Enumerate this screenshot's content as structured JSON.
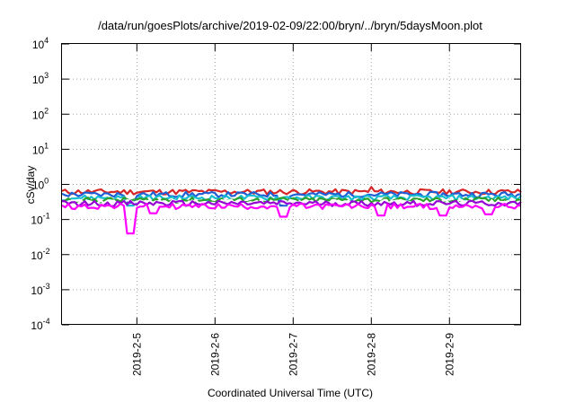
{
  "chart_data": {
    "type": "line",
    "title": "/data/run/goesPlots/archive/2019-02-09/22:00/bryn/../bryn/5daysMoon.plot",
    "xlabel": "Coordinated Universal Time (UTC)",
    "ylabel": "cSv/day",
    "yscale": "log",
    "ylim": [
      0.0001,
      10000
    ],
    "xlim": [
      "2019-02-04 01:00",
      "2019-02-09 22:00"
    ],
    "grid": true,
    "y_ticks": [
      {
        "base": "10",
        "exp": "-4"
      },
      {
        "base": "10",
        "exp": "-3"
      },
      {
        "base": "10",
        "exp": "-2"
      },
      {
        "base": "10",
        "exp": "-1"
      },
      {
        "base": "10",
        "exp": "0"
      },
      {
        "base": "10",
        "exp": "1"
      },
      {
        "base": "10",
        "exp": "2"
      },
      {
        "base": "10",
        "exp": "3"
      },
      {
        "base": "10",
        "exp": "4"
      }
    ],
    "x_ticks": [
      {
        "label": "2019-2-5",
        "date": "2019-02-05 00:00"
      },
      {
        "label": "2019-2-6",
        "date": "2019-02-06 00:00"
      },
      {
        "label": "2019-2-7",
        "date": "2019-02-07 00:00"
      },
      {
        "label": "2019-2-8",
        "date": "2019-02-08 00:00"
      },
      {
        "label": "2019-2-9",
        "date": "2019-02-09 00:00"
      }
    ],
    "series": [
      {
        "color": "#d62728",
        "base": 0.62,
        "spikes": [
          [
            "2019-02-08 00:00",
            0.85
          ]
        ],
        "dips": []
      },
      {
        "color": "#1f5fd6",
        "base": 0.52,
        "spikes": [],
        "dips": [
          [
            "2019-02-04 22:00",
            0.3
          ],
          [
            "2019-02-06 21:00",
            0.25
          ]
        ]
      },
      {
        "color": "#17becf",
        "base": 0.42,
        "spikes": [],
        "dips": [
          [
            "2019-02-04 22:00",
            0.25
          ]
        ]
      },
      {
        "color": "#2ca02c",
        "base": 0.36,
        "spikes": [],
        "dips": []
      },
      {
        "color": "#ffffff",
        "base": 0.31,
        "spikes": [],
        "dips": []
      },
      {
        "color": "#9400d3",
        "base": 0.29,
        "spikes": [],
        "dips": []
      },
      {
        "color": "#ff00ff",
        "base": 0.24,
        "spikes": [],
        "dips": [
          [
            "2019-02-04 22:00",
            0.04
          ],
          [
            "2019-02-05 05:00",
            0.15
          ],
          [
            "2019-02-06 21:00",
            0.12
          ],
          [
            "2019-02-08 03:00",
            0.13
          ],
          [
            "2019-02-08 22:00",
            0.13
          ],
          [
            "2019-02-09 12:00",
            0.14
          ]
        ]
      }
    ]
  }
}
